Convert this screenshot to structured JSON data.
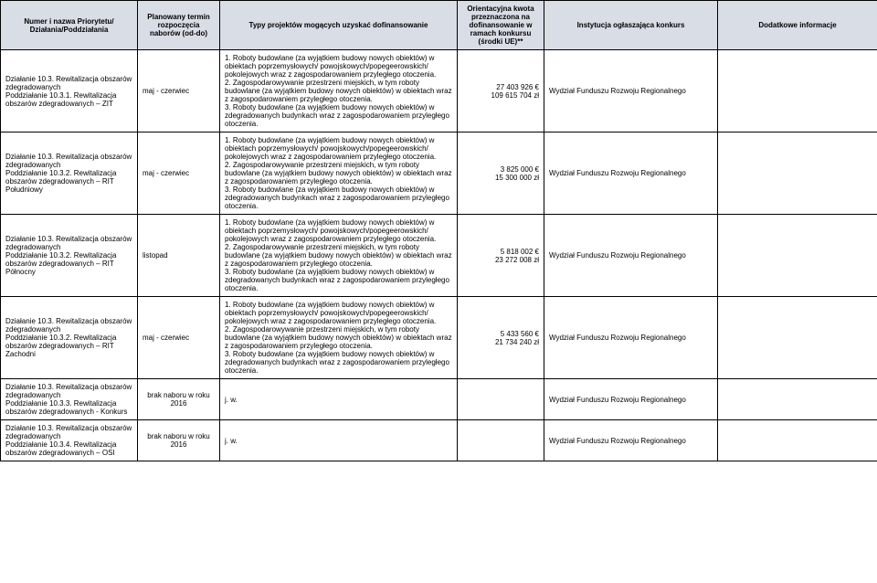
{
  "headers": {
    "name": "Numer i nazwa Priorytetu/\nDziałania/Poddziałania",
    "term": "Planowany termin rozpoczęcia naborów (od-do)",
    "typy": "Typy projektów mogących uzyskać dofinansowanie",
    "kwota": "Orientacyjna kwota przeznaczona na dofinansowanie w ramach konkursu (środki UE)**",
    "inst": "Instytucja ogłaszająca konkurs",
    "info": "Dodatkowe informacje"
  },
  "typy_full": "1. Roboty budowlane (za wyjątkiem budowy nowych obiektów) w obiektach poprzemysłowych/ powojskowych/popegeerowskich/ pokolejowych wraz z zagospodarowaniem przyległego otoczenia.\n2. Zagospodarowywanie przestrzeni miejskich, w tym roboty budowlane (za wyjątkiem budowy nowych obiektów) w obiektach wraz z zagospodarowaniem przyległego otoczenia.\n3. Roboty budowlane (za wyjątkiem budowy nowych obiektów) w zdegradowanych budynkach wraz z zagospodarowaniem przyległego otoczenia.",
  "jw": "j. w.",
  "rows": [
    {
      "name": "Działanie 10.3. Rewitalizacja obszarów zdegradowanych\nPoddziałanie 10.3.1. Rewitalizacja obszarów zdegradowanych – ZIT",
      "term": "maj - czerwiec",
      "kwota": "27 403 926 €\n109 615 704 zł",
      "inst": "Wydział Funduszu Rozwoju Regionalnego",
      "info": ""
    },
    {
      "name": "Działanie 10.3. Rewitalizacja obszarów zdegradowanych\nPoddziałanie 10.3.2. Rewitalizacja obszarów zdegradowanych – RIT Południowy",
      "term": "maj - czerwiec",
      "kwota": "3 825 000 €\n15 300 000 zł",
      "inst": "Wydział Funduszu Rozwoju Regionalnego",
      "info": ""
    },
    {
      "name": "Działanie 10.3. Rewitalizacja obszarów zdegradowanych\nPoddziałanie 10.3.2. Rewitalizacja obszarów zdegradowanych – RIT Północny",
      "term": "listopad",
      "kwota": "5 818 002 €\n23 272 008 zł",
      "inst": "Wydział Funduszu Rozwoju Regionalnego",
      "info": ""
    },
    {
      "name": "Działanie 10.3. Rewitalizacja obszarów zdegradowanych\nPoddziałanie 10.3.2. Rewitalizacja obszarów zdegradowanych – RIT Zachodni",
      "term": "maj - czerwiec",
      "kwota": "5 433 560 €\n21 734 240 zł",
      "inst": "Wydział Funduszu Rozwoju Regionalnego",
      "info": ""
    },
    {
      "name": "Działanie 10.3. Rewitalizacja obszarów zdegradowanych\nPoddziałanie 10.3.3. Rewitalizacja obszarów zdegradowanych - Konkurs",
      "term": "brak naboru w roku 2016",
      "kwota": "",
      "inst": "Wydział Funduszu Rozwoju Regionalnego",
      "info": "",
      "jw": true
    },
    {
      "name": "Działanie 10.3. Rewitalizacja obszarów zdegradowanych\nPoddziałanie 10.3.4. Rewitalizacja obszarów zdegradowanych – OSI",
      "term": "brak naboru w roku 2016",
      "kwota": "",
      "inst": "Wydział Funduszu Rozwoju Regionalnego",
      "info": "",
      "jw": true
    }
  ]
}
